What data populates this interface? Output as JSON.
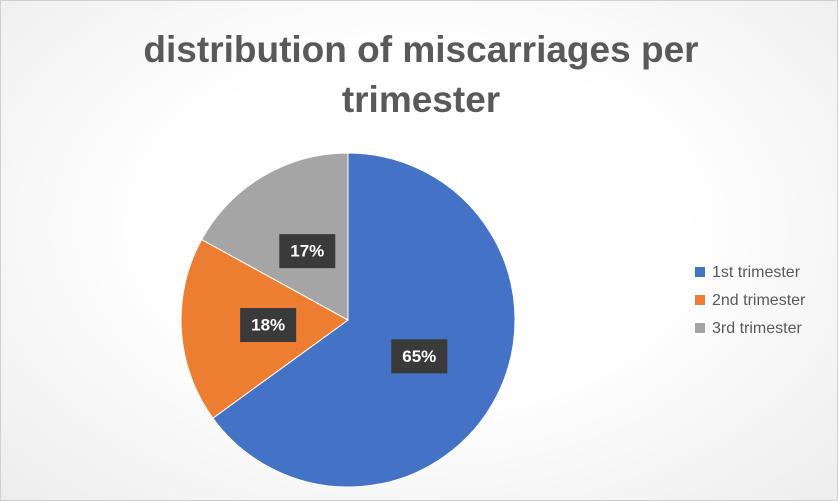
{
  "chart_data": {
    "type": "pie",
    "title": "distribution of miscarriages per trimester",
    "categories": [
      "1st trimester",
      "2nd trimester",
      "3rd trimester"
    ],
    "values": [
      65,
      18,
      17
    ],
    "value_labels": [
      "65%",
      "18%",
      "17%"
    ],
    "colors": [
      "#4472c4",
      "#ed7d31",
      "#a5a5a5"
    ],
    "legend": "right"
  }
}
